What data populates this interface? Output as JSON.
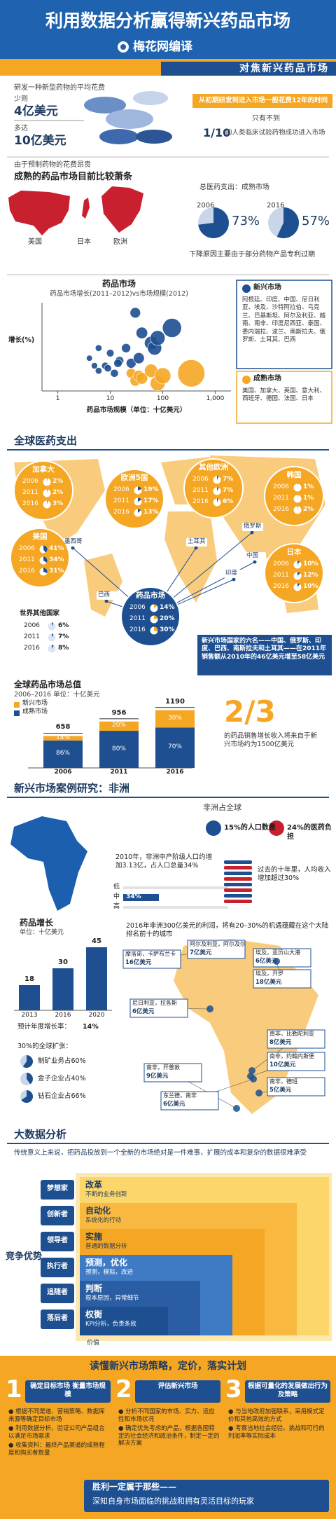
{
  "header": {
    "title": "利用数据分析赢得新兴药品市场",
    "brand": "梅花网编译",
    "subtitle": "对焦新兴药品市场"
  },
  "intro": {
    "cost_label": "研发一种新型药物的平均花费",
    "min_label": "少则",
    "min": "4亿美元",
    "max_label": "多达",
    "max": "10亿美元",
    "time": "从初期研发到进入市场一般花费12年的时间",
    "rate_label": "只有不到",
    "rate": "1/10",
    "rate_text": "的人类临床试验药物成功进入市场"
  },
  "mature": {
    "note": "由于预制药物的花费昂贵",
    "title": "成熟的药品市场目前比较萧条",
    "regions": [
      "美国",
      "日本",
      "欧洲"
    ],
    "share_title": "总医药支出：成熟市场",
    "shares": [
      {
        "year": "2006",
        "value": 73,
        "label": "73%"
      },
      {
        "year": "2016",
        "value": 57,
        "label": "57%"
      }
    ],
    "footnote": "下降原因主要由于部分药物产品专利过期"
  },
  "scatter": {
    "type": "scatter",
    "title": "药品市场",
    "subtitle": "药品市场增长(2011–2012)vs市场规模(2012)",
    "ylabel": "增长(%)",
    "xlabel": "药品市场规模（单位：十亿美元）",
    "log_x": true,
    "xlim": [
      0.5,
      2000
    ],
    "ylim": [
      -5,
      30
    ],
    "xticks": [
      1,
      10,
      100,
      {
        "value": 1000,
        "label": "1,000"
      }
    ],
    "series": [
      {
        "name": "新兴市场",
        "color": "#1d4f91",
        "members": "阿根廷、印度、中国、尼日利亚、埃及、沙特阿拉伯、乌克兰、巴基斯坦、阿尔及利亚、越南、南非、印度尼西亚、泰国、委内瑞拉、波兰、南斯拉夫、俄罗斯、土耳其、巴西",
        "x": [
          4,
          6,
          8,
          10,
          12,
          15,
          20,
          25,
          30,
          40,
          60,
          70,
          80,
          150,
          6,
          5,
          9,
          14,
          35
        ],
        "y": [
          8,
          3,
          5,
          10,
          2,
          7,
          12,
          6,
          26,
          18,
          14,
          12,
          16,
          20,
          12,
          5,
          4,
          6,
          8
        ]
      },
      {
        "name": "成熟市场",
        "color": "#f5a623",
        "members": "美国、加拿大、英国、意大利、西班牙、德国、法国、日本",
        "x": [
          25,
          30,
          35,
          40,
          60,
          80,
          100,
          350
        ],
        "y": [
          2,
          -1,
          1,
          0,
          3,
          -2,
          1,
          2
        ]
      }
    ]
  },
  "global": {
    "title": "全球医药支出",
    "years": [
      "2006",
      "2011",
      "2016"
    ],
    "regions": [
      {
        "name": "加拿大",
        "values": [
          2,
          2,
          3
        ],
        "labels": [
          "2%",
          "2%",
          "3%"
        ]
      },
      {
        "name": "欧洲5国",
        "values": [
          19,
          17,
          13
        ],
        "labels": [
          "19%",
          "17%",
          "13%"
        ]
      },
      {
        "name": "其他欧洲",
        "values": [
          7,
          7,
          6
        ],
        "labels": [
          "7%",
          "7%",
          "6%"
        ]
      },
      {
        "name": "韩国",
        "values": [
          1,
          1,
          2
        ],
        "labels": [
          "1%",
          "1%",
          "2%"
        ]
      },
      {
        "name": "美国",
        "values": [
          41,
          34,
          31
        ],
        "labels": [
          "41%",
          "34%",
          "31%"
        ]
      },
      {
        "name": "日本",
        "values": [
          10,
          12,
          10
        ],
        "labels": [
          "10%",
          "12%",
          "10%"
        ]
      }
    ],
    "emerging": {
      "name": "药品市场",
      "values": [
        14,
        20,
        30
      ],
      "labels": [
        "14%",
        "20%",
        "30%"
      ]
    },
    "rest": {
      "name": "世界其他国家",
      "values": [
        6,
        7,
        8
      ],
      "labels": [
        "6%",
        "7%",
        "8%"
      ]
    },
    "countries": [
      "墨西哥",
      "巴西",
      "土耳其",
      "俄罗斯",
      "中国",
      "印度"
    ],
    "note": "新兴市场国家的六名——中国、俄罗斯、印度、巴西、南斯拉夫和土耳其——在2011年销售额从2010年的46亿美元增至58亿美元"
  },
  "market": {
    "type": "bar",
    "title": "全球药品市场总值",
    "subtitle": "2006–2016 单位：十亿美元",
    "categories": [
      "2006",
      "2011",
      "2016"
    ],
    "totals": [
      658,
      956,
      1190
    ],
    "ylim": [
      0,
      1300
    ],
    "series": [
      {
        "name": "新兴市场",
        "color": "#f5a623",
        "values": [
          14,
          20,
          30
        ],
        "value_labels": [
          "14%",
          "20%",
          "30%"
        ]
      },
      {
        "name": "成熟市场",
        "color": "#1d4f91",
        "values": [
          86,
          80,
          70
        ],
        "value_labels": [
          "86%",
          "80%",
          "70%"
        ]
      }
    ],
    "highlight": "2/3",
    "highlight_text": "的药品销售增长收入将来自于新兴市场约为1500亿美元"
  },
  "africa": {
    "title": "新兴市场案例研究：非洲",
    "share_title": "非洲占全球",
    "population": "15%的人口数量",
    "burden": "24%的医药负担",
    "middle_text": "2010年，非洲中产阶级人口约增加3.13亿，占人口总量34%",
    "classes": [
      "低",
      "中",
      "高"
    ],
    "middle_share": 34,
    "middle_label": "34%",
    "income_text": "过去的十年里，人均收入增加超过30%",
    "growth": {
      "type": "bar",
      "title": "药品增长",
      "unit": "单位：十亿美元",
      "categories": [
        "2013",
        "2016",
        "2020"
      ],
      "values": [
        18,
        30,
        45
      ],
      "ylim": [
        0,
        50
      ],
      "note": "预计年度增长率：",
      "rate": "14%"
    },
    "expansion": {
      "title": "30%的全球扩张：",
      "items": [
        {
          "text": "制矿业务占60%",
          "value": 60
        },
        {
          "text": "金子企业占40%",
          "value": 40
        },
        {
          "text": "钻石企业占66%",
          "value": 66
        }
      ]
    },
    "cities_intro": "2016年非洲300亿美元的利润，将有20–30%的机遇蕴藏在这个大陆排名前十的城市",
    "cities": [
      {
        "name": "摩洛哥，卡萨布兰卡",
        "value": "16亿美元"
      },
      {
        "name": "阿尔及利亚，阿尔及尔",
        "value": "7亿美元"
      },
      {
        "name": "埃及，亚历山大港",
        "value": "6亿美元"
      },
      {
        "name": "埃及，开罗",
        "value": "18亿美元"
      },
      {
        "name": "尼日利亚，拉各斯",
        "value": "6亿美元"
      },
      {
        "name": "南非，比勒陀利亚",
        "value": "8亿美元"
      },
      {
        "name": "南非，约翰内斯堡",
        "value": "10亿美元"
      },
      {
        "name": "南非，德班",
        "value": "5亿美元"
      },
      {
        "name": "南非，开普敦",
        "value": "9亿美元"
      },
      {
        "name": "东兰德，南非",
        "value": "6亿美元"
      }
    ]
  },
  "bigdata": {
    "title": "大数据分析",
    "intro": "传统意义上来说，把药品投放到一个全新的市场绝对是一件难事，扩展的成本和复杂的数据很难承受",
    "axis_y": "竞争优势",
    "axis_x": "价值",
    "levels": [
      {
        "role": "梦想家",
        "title": "改革",
        "desc": "不断的业务创新"
      },
      {
        "role": "创新者",
        "title": "自动化",
        "desc": "系统化的行动"
      },
      {
        "role": "领导者",
        "title": "实施",
        "desc": "普通的数据分析"
      },
      {
        "role": "执行者",
        "title": "预测，优化",
        "desc": "预测，模拟，改进"
      },
      {
        "role": "追随者",
        "title": "判断",
        "desc": "根本原因，异常细节"
      },
      {
        "role": "落后者",
        "title": "权衡",
        "desc": "KPI分析，负责条款"
      }
    ]
  },
  "plan": {
    "title": "读懂新兴市场策略，定价，落实计划",
    "steps": [
      {
        "num": "1",
        "title": "确定目标市场 衡量市场规模",
        "body": [
          "● 根据不同渠道、营销策略、数据库来源等确定目标市场",
          "● 利用数据分析，验证公司产品组合以满足市场需求",
          "● 收集资料：最终产品渠道的成熟程度和购买者数量"
        ]
      },
      {
        "num": "2",
        "title": "评估新兴市场",
        "body": [
          "● 分析不同国家的市场、实力、适应性和市场状况",
          "● 确定优先考虑的产品，根据各国特定的社会经济和政治条件，制定一定的解决方案"
        ]
      },
      {
        "num": "3",
        "title": "根据可量化的发展做出行为及策略",
        "body": [
          "● 与当地政府加强联系，采用模式定价和其他高效的方式",
          "● 考察当地社会经验、挑战和可行的利润率等实际成本"
        ]
      }
    ],
    "footer_1": "胜利一定属于那些——",
    "footer_2": "深知自身市场面临的挑战和拥有灵活目标的玩家"
  }
}
